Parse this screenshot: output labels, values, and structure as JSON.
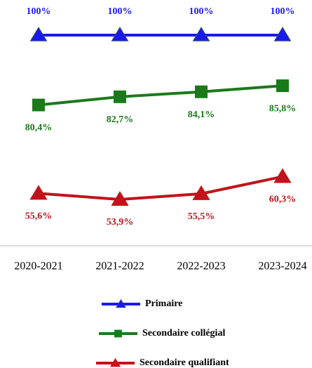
{
  "chart_data": {
    "type": "line",
    "categories": [
      "2020-2021",
      "2021-2022",
      "2022-2023",
      "2023-2024"
    ],
    "series": [
      {
        "name": "Primaire",
        "color": "#1a1aee",
        "marker": "triangle",
        "values": [
          100,
          100,
          100,
          100
        ],
        "value_labels": [
          "100%",
          "100%",
          "100%",
          "100%"
        ]
      },
      {
        "name": "Secondaire collégial",
        "color": "#1a7a1a",
        "marker": "square",
        "values": [
          80.4,
          82.7,
          84.1,
          85.8
        ],
        "value_labels": [
          "80,4%",
          "82,7%",
          "84,1%",
          "85,8%"
        ]
      },
      {
        "name": "Secondaire qualifiant",
        "color": "#c0141a",
        "marker": "triangle",
        "values": [
          55.6,
          53.9,
          55.5,
          60.3
        ],
        "value_labels": [
          "55,6%",
          "53,9%",
          "55,5%",
          "60,3%"
        ]
      }
    ]
  }
}
